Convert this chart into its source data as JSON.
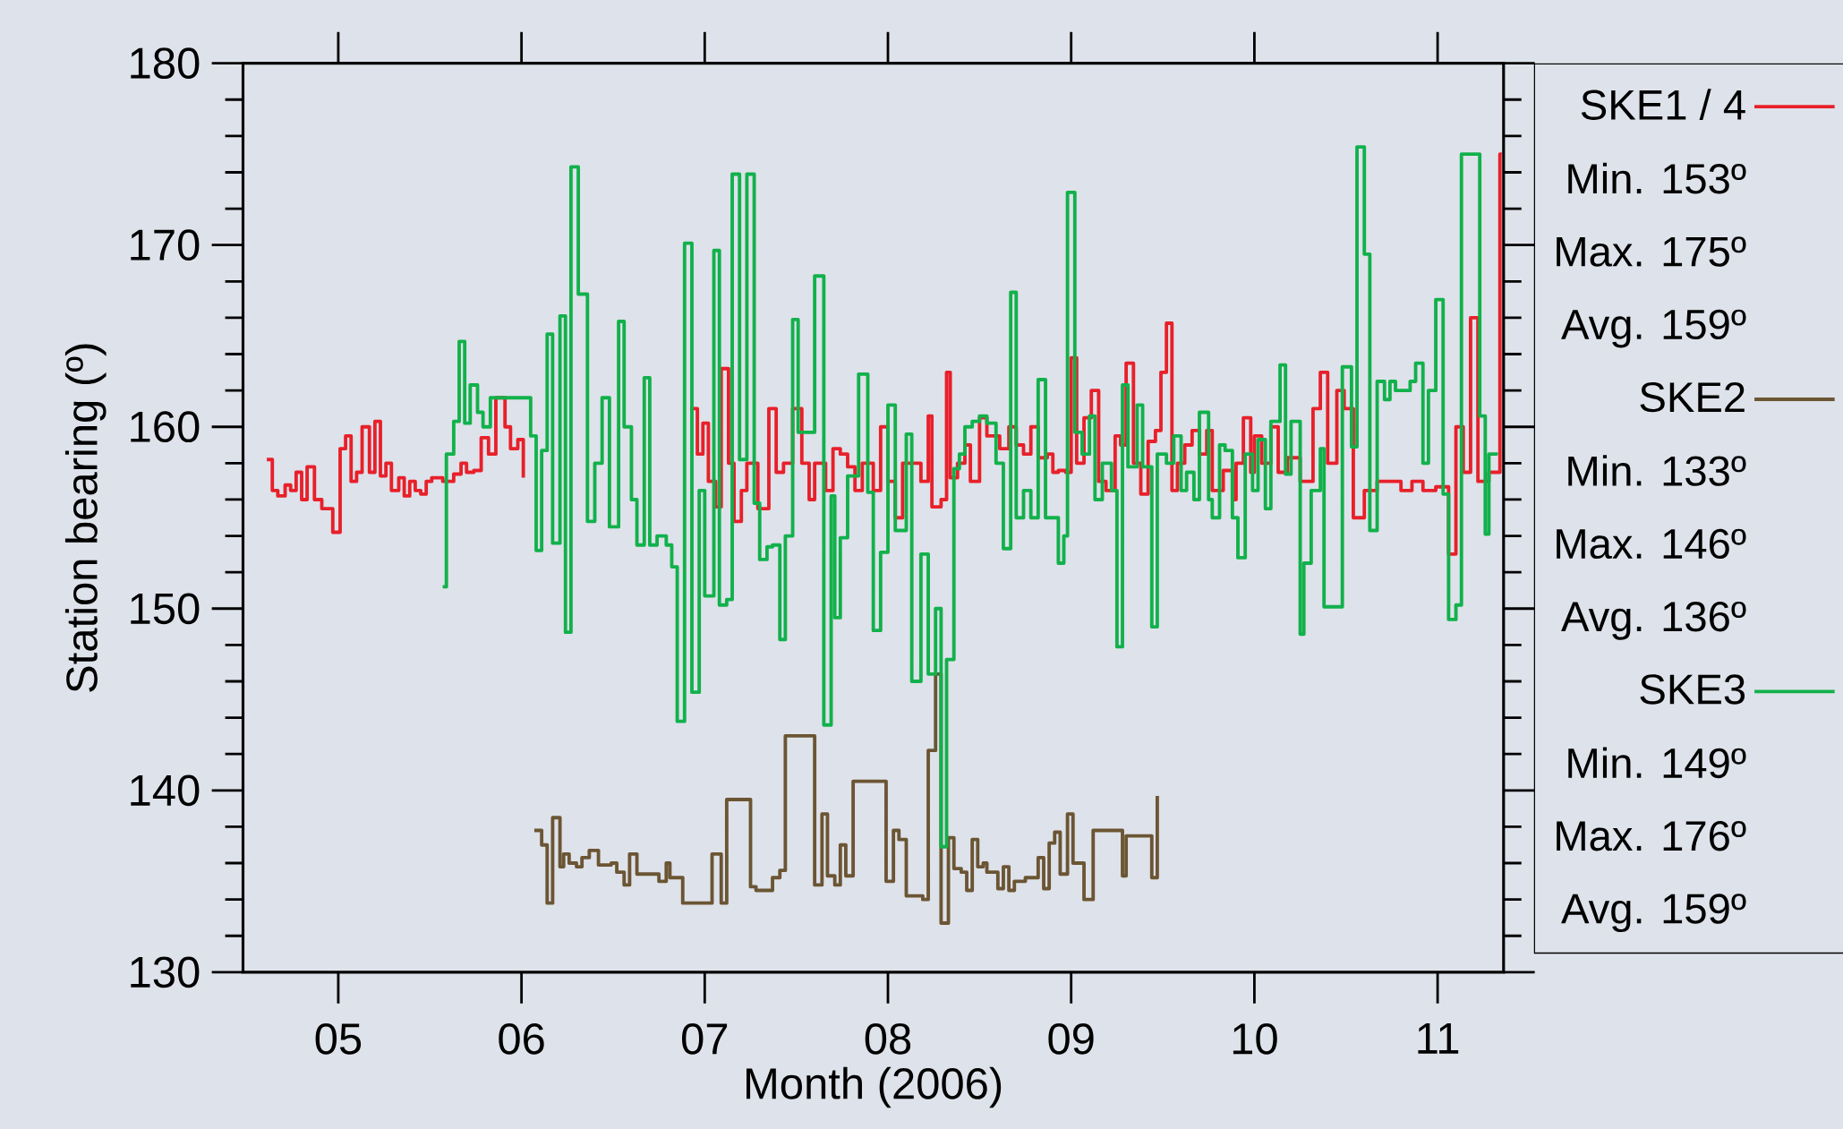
{
  "chart_data": {
    "type": "step",
    "xlabel": "Month (2006)",
    "ylabel": "Station bearing (º)",
    "xlim": [
      4.48,
      11.36
    ],
    "ylim": [
      130,
      180
    ],
    "xticks": [
      {
        "value": 5,
        "label": "05"
      },
      {
        "value": 6,
        "label": "06"
      },
      {
        "value": 7,
        "label": "07"
      },
      {
        "value": 8,
        "label": "08"
      },
      {
        "value": 9,
        "label": "09"
      },
      {
        "value": 10,
        "label": "10"
      },
      {
        "value": 11,
        "label": "11"
      }
    ],
    "yticks": [
      130,
      140,
      150,
      160,
      170,
      180
    ],
    "legend": "right",
    "annotations": [
      "Min. 153º",
      "Max. 175º",
      "Avg. 159º",
      "Min. 133º",
      "Max. 146º",
      "Avg. 136º",
      "Min. 149º",
      "Max. 176º",
      "Avg. 159º"
    ],
    "series": [
      {
        "name": "SKE1 / 4",
        "color": "#e8202a",
        "x": [
          4.61,
          4.64,
          4.67,
          4.71,
          4.74,
          4.77,
          4.8,
          4.83,
          4.87,
          4.91,
          4.97,
          5.01,
          5.04,
          5.07,
          5.1,
          5.13,
          5.17,
          5.2,
          5.23,
          5.26,
          5.29,
          5.33,
          5.36,
          5.39,
          5.42,
          5.45,
          5.48,
          5.51,
          5.57,
          5.63,
          5.67,
          5.7,
          5.74,
          5.78,
          5.82,
          5.86,
          5.91,
          5.94,
          5.98,
          6.01,
          6.5,
          6.92,
          6.96,
          6.99,
          7.02,
          7.06,
          7.09,
          7.13,
          7.16,
          7.2,
          7.23,
          7.29,
          7.35,
          7.39,
          7.43,
          7.48,
          7.53,
          7.57,
          7.6,
          7.66,
          7.7,
          7.74,
          7.78,
          7.82,
          7.86,
          7.92,
          7.96,
          8.0,
          8.04,
          8.08,
          8.12,
          8.18,
          8.22,
          8.24,
          8.29,
          8.32,
          8.34,
          8.38,
          8.42,
          8.45,
          8.5,
          8.54,
          8.57,
          8.61,
          8.66,
          8.7,
          8.74,
          8.78,
          8.82,
          8.87,
          8.9,
          8.93,
          8.97,
          9.0,
          9.03,
          9.07,
          9.11,
          9.15,
          9.19,
          9.24,
          9.27,
          9.3,
          9.34,
          9.38,
          9.42,
          9.46,
          9.49,
          9.52,
          9.55,
          9.58,
          9.62,
          9.66,
          9.7,
          9.74,
          9.77,
          9.83,
          9.88,
          9.9,
          9.94,
          9.98,
          10.0,
          10.04,
          10.09,
          10.13,
          10.18,
          10.25,
          10.32,
          10.36,
          10.4,
          10.45,
          10.49,
          10.54,
          10.6,
          10.67,
          10.73,
          10.8,
          10.86,
          10.92,
          10.99,
          11.06,
          11.1,
          11.14,
          11.18,
          11.22,
          11.26,
          11.28,
          11.32,
          11.34,
          11.35
        ],
        "values": [
          158.2,
          156.5,
          156.2,
          156.8,
          156.5,
          157.5,
          156,
          157.8,
          156,
          155.5,
          154.2,
          158.8,
          159.5,
          157,
          157.5,
          160,
          157.5,
          160.3,
          157.3,
          158,
          156.5,
          157.2,
          156.2,
          157,
          156.5,
          156.3,
          157,
          157.2,
          157,
          157.4,
          158,
          157.5,
          157.6,
          159.4,
          158.5,
          161.6,
          160,
          158.8,
          159.3,
          157.2,
          null,
          161,
          158.5,
          160.2,
          157,
          155.6,
          163.2,
          158,
          154.8,
          156.5,
          158,
          155.5,
          161,
          157.5,
          158,
          161,
          158,
          156,
          158,
          156.5,
          158.8,
          158.5,
          157.8,
          156.5,
          158,
          156.5,
          160,
          157,
          155,
          158,
          158,
          157,
          160.6,
          155.6,
          156,
          163,
          157.2,
          158,
          159,
          157,
          160.5,
          159.5,
          159.5,
          158.8,
          160,
          159,
          158.5,
          160,
          158.3,
          158.5,
          157.5,
          157.6,
          157.5,
          163.8,
          158,
          160.5,
          162,
          157,
          156.5,
          159.5,
          159,
          163.5,
          158,
          156.3,
          159.2,
          159.8,
          163,
          165.7,
          156.5,
          158,
          159,
          159.8,
          158.5,
          159.8,
          156.5,
          157.6,
          156,
          158,
          160.5,
          157.5,
          159.5,
          158,
          160,
          157.5,
          158.3,
          157,
          161,
          163,
          158,
          162,
          161,
          155,
          156.5,
          157,
          157,
          156.5,
          157,
          156.5,
          156.7,
          153,
          160,
          157.5,
          166,
          157,
          157,
          157.5,
          157.5,
          175,
          175
        ]
      },
      {
        "name": "SKE2",
        "color": "#6b5533",
        "x": [
          6.07,
          6.11,
          6.14,
          6.17,
          6.21,
          6.23,
          6.26,
          6.3,
          6.33,
          6.37,
          6.42,
          6.49,
          6.52,
          6.56,
          6.59,
          6.63,
          6.75,
          6.79,
          6.81,
          6.88,
          7.04,
          7.09,
          7.12,
          7.25,
          7.28,
          7.37,
          7.41,
          7.44,
          7.6,
          7.64,
          7.67,
          7.71,
          7.74,
          7.77,
          7.81,
          7.99,
          8.03,
          8.06,
          8.1,
          8.19,
          8.22,
          8.26,
          8.29,
          8.33,
          8.36,
          8.4,
          8.43,
          8.46,
          8.49,
          8.52,
          8.54,
          8.6,
          8.63,
          8.66,
          8.69,
          8.75,
          8.82,
          8.85,
          8.88,
          8.91,
          8.94,
          8.98,
          9.01,
          9.07,
          9.12,
          9.28,
          9.3,
          9.44,
          9.47
        ],
        "values": [
          137.8,
          137,
          133.8,
          138.5,
          135.8,
          136.5,
          136,
          135.8,
          136.3,
          136.7,
          135.9,
          136,
          135.5,
          134.8,
          136.5,
          135.4,
          135,
          136,
          135.2,
          133.8,
          136.5,
          133.8,
          139.5,
          134.7,
          134.5,
          135.2,
          135.6,
          143,
          134.8,
          138.7,
          135.3,
          134.8,
          137,
          135.3,
          140.5,
          135,
          137.8,
          137.3,
          134.2,
          134,
          142.2,
          146.4,
          132.7,
          137.4,
          135.7,
          135.5,
          134.5,
          137.3,
          135.8,
          136,
          135.5,
          134.6,
          135.8,
          134.5,
          135,
          135.2,
          136.3,
          134.6,
          137.1,
          137.7,
          135.4,
          138.7,
          136,
          134,
          137.8,
          135.3,
          137.5,
          135.2,
          139.7
        ]
      },
      {
        "name": "SKE3",
        "color": "#11b14b",
        "x": [
          5.57,
          5.59,
          5.63,
          5.66,
          5.69,
          5.72,
          5.76,
          5.79,
          5.83,
          6.05,
          6.08,
          6.11,
          6.14,
          6.17,
          6.21,
          6.24,
          6.27,
          6.31,
          6.36,
          6.4,
          6.44,
          6.48,
          6.53,
          6.56,
          6.6,
          6.63,
          6.67,
          6.7,
          6.74,
          6.79,
          6.82,
          6.85,
          6.89,
          6.93,
          6.97,
          7.0,
          7.05,
          7.08,
          7.12,
          7.15,
          7.19,
          7.23,
          7.27,
          7.3,
          7.34,
          7.37,
          7.41,
          7.44,
          7.48,
          7.51,
          7.55,
          7.6,
          7.65,
          7.69,
          7.71,
          7.74,
          7.78,
          7.84,
          7.89,
          7.92,
          7.96,
          8.0,
          8.04,
          8.1,
          8.13,
          8.18,
          8.22,
          8.26,
          8.29,
          8.32,
          8.36,
          8.39,
          8.42,
          8.46,
          8.5,
          8.54,
          8.59,
          8.63,
          8.67,
          8.7,
          8.74,
          8.78,
          8.82,
          8.86,
          8.89,
          8.93,
          8.96,
          8.98,
          9.02,
          9.06,
          9.1,
          9.13,
          9.17,
          9.22,
          9.25,
          9.28,
          9.31,
          9.36,
          9.39,
          9.44,
          9.47,
          9.52,
          9.56,
          9.6,
          9.63,
          9.67,
          9.7,
          9.75,
          9.77,
          9.81,
          9.84,
          9.88,
          9.91,
          9.95,
          9.99,
          10.02,
          10.06,
          10.09,
          10.14,
          10.17,
          10.2,
          10.25,
          10.27,
          10.31,
          10.36,
          10.38,
          10.48,
          10.53,
          10.56,
          10.6,
          10.63,
          10.67,
          10.71,
          10.74,
          10.77,
          10.81,
          10.85,
          10.88,
          10.92,
          10.95,
          10.99,
          11.03,
          11.06,
          11.1,
          11.13,
          11.23,
          11.26,
          11.28,
          11.32
        ],
        "values": [
          151.2,
          158.5,
          160.3,
          164.7,
          160.2,
          162.3,
          160.8,
          160,
          161.6,
          159.5,
          153.2,
          158.7,
          165.1,
          153.6,
          166.1,
          148.7,
          174.3,
          167.3,
          154.8,
          158,
          161.6,
          154.5,
          165.8,
          160,
          156,
          153.5,
          162.7,
          153.5,
          154,
          153.5,
          152.3,
          143.8,
          170.1,
          145.4,
          156.5,
          150.7,
          169.7,
          150.2,
          150.5,
          173.9,
          158.2,
          173.9,
          155.8,
          152.7,
          153.4,
          153.5,
          148.3,
          154,
          165.9,
          159.7,
          159.7,
          168.3,
          143.6,
          156.2,
          149.5,
          153.9,
          157.3,
          162.9,
          156.4,
          148.8,
          153.1,
          161.2,
          154.3,
          159.6,
          146,
          153,
          146.4,
          150,
          136.9,
          147.2,
          157.7,
          158.5,
          160,
          160.3,
          160.6,
          160.2,
          158,
          153.3,
          167.4,
          155,
          156.5,
          155,
          162.6,
          155,
          155,
          152.5,
          154,
          172.9,
          159.7,
          158.5,
          160.6,
          156,
          158,
          156.5,
          147.9,
          162.3,
          157.8,
          161.2,
          157.8,
          149,
          158.5,
          158,
          159.5,
          156.5,
          157.5,
          156,
          160.8,
          156,
          155,
          159,
          158.7,
          155,
          152.8,
          158.5,
          156.5,
          159.3,
          155.5,
          160.3,
          163.4,
          157.4,
          160.3,
          148.6,
          152.5,
          156.5,
          158.8,
          150.1,
          163.3,
          158.9,
          175.4,
          169.5,
          154.3,
          162.5,
          161.5,
          162.5,
          162,
          162,
          162.5,
          163.5,
          158,
          162,
          167,
          156.3,
          149.4,
          150.2,
          175,
          160.6,
          154.1,
          158.5,
          158.6
        ]
      }
    ]
  }
}
